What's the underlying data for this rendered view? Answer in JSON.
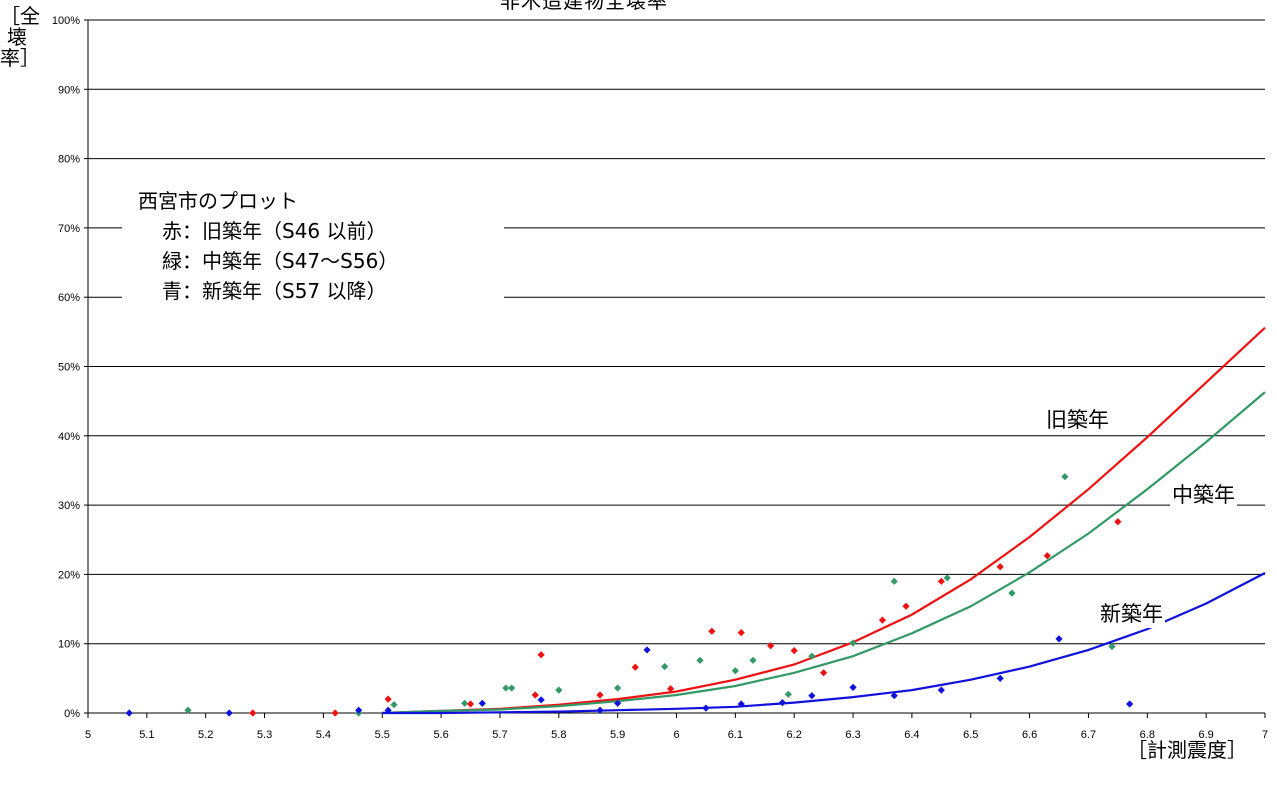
{
  "chart_data": {
    "type": "scatter",
    "title": "非木造建物全壊率",
    "ylabel": "［全壊率］",
    "xlabel": "［計測震度］",
    "xlim": [
      5,
      7
    ],
    "ylim": [
      0,
      100
    ],
    "x_ticks": [
      "5",
      "5.1",
      "5.2",
      "5.3",
      "5.4",
      "5.5",
      "5.6",
      "5.7",
      "5.8",
      "5.9",
      "6",
      "6.1",
      "6.2",
      "6.3",
      "6.4",
      "6.5",
      "6.6",
      "6.7",
      "6.8",
      "6.9",
      "7"
    ],
    "y_ticks": [
      "0%",
      "10%",
      "20%",
      "30%",
      "40%",
      "50%",
      "60%",
      "70%",
      "80%",
      "90%",
      "100%"
    ],
    "grid": "horizontal",
    "legend": {
      "title": "西宮市のプロット",
      "items": [
        "赤：旧築年（S46 以前）",
        "緑：中築年（S47～S56）",
        "青：新築年（S57 以降）"
      ]
    },
    "curve_labels": {
      "old": "旧築年",
      "mid": "中築年",
      "new": "新築年"
    },
    "colors": {
      "old": "#ee1111",
      "mid": "#339966",
      "new": "#1111dd"
    },
    "curves": [
      {
        "key": "old",
        "x": [
          5.5,
          5.6,
          5.7,
          5.8,
          5.9,
          6.0,
          6.1,
          6.2,
          6.3,
          6.4,
          6.5,
          6.6,
          6.7,
          6.8,
          6.9,
          7.0
        ],
        "y": [
          0,
          0.3,
          0.6,
          1.2,
          2.0,
          3.1,
          4.8,
          7.0,
          10.2,
          14.2,
          19.3,
          25.4,
          32.3,
          39.8,
          47.7,
          55.6
        ]
      },
      {
        "key": "mid",
        "x": [
          5.5,
          5.6,
          5.7,
          5.8,
          5.9,
          6.0,
          6.1,
          6.2,
          6.3,
          6.4,
          6.5,
          6.6,
          6.7,
          6.8,
          6.9,
          7.0
        ],
        "y": [
          0,
          0.3,
          0.5,
          1.0,
          1.7,
          2.6,
          3.9,
          5.8,
          8.2,
          11.5,
          15.4,
          20.3,
          25.9,
          32.3,
          39.1,
          46.3
        ]
      },
      {
        "key": "new",
        "x": [
          5.5,
          5.6,
          5.7,
          5.8,
          5.9,
          6.0,
          6.1,
          6.2,
          6.3,
          6.4,
          6.5,
          6.6,
          6.7,
          6.8,
          6.9,
          7.0
        ],
        "y": [
          0,
          0,
          0.1,
          0.2,
          0.4,
          0.6,
          0.9,
          1.5,
          2.3,
          3.3,
          4.8,
          6.7,
          9.1,
          12.1,
          15.8,
          20.2
        ]
      }
    ],
    "series": [
      {
        "key": "old",
        "points": [
          [
            5.28,
            0
          ],
          [
            5.42,
            0
          ],
          [
            5.51,
            2.0
          ],
          [
            5.65,
            1.3
          ],
          [
            5.76,
            2.6
          ],
          [
            5.77,
            8.4
          ],
          [
            5.87,
            2.6
          ],
          [
            5.93,
            6.6
          ],
          [
            5.99,
            3.5
          ],
          [
            6.06,
            11.8
          ],
          [
            6.11,
            11.6
          ],
          [
            6.16,
            9.7
          ],
          [
            6.2,
            9.0
          ],
          [
            6.25,
            5.8
          ],
          [
            6.35,
            13.4
          ],
          [
            6.39,
            15.4
          ],
          [
            6.45,
            19.0
          ],
          [
            6.55,
            21.1
          ],
          [
            6.63,
            22.7
          ],
          [
            6.75,
            27.6
          ]
        ]
      },
      {
        "key": "mid",
        "points": [
          [
            5.17,
            0.4
          ],
          [
            5.46,
            0
          ],
          [
            5.52,
            1.2
          ],
          [
            5.64,
            1.4
          ],
          [
            5.71,
            3.6
          ],
          [
            5.72,
            3.6
          ],
          [
            5.8,
            3.3
          ],
          [
            5.9,
            3.6
          ],
          [
            5.98,
            6.7
          ],
          [
            6.04,
            7.6
          ],
          [
            6.1,
            6.1
          ],
          [
            6.13,
            7.6
          ],
          [
            6.19,
            2.7
          ],
          [
            6.23,
            8.2
          ],
          [
            6.3,
            10.1
          ],
          [
            6.37,
            19.0
          ],
          [
            6.46,
            19.5
          ],
          [
            6.57,
            17.3
          ],
          [
            6.66,
            34.1
          ],
          [
            6.74,
            9.6
          ]
        ]
      },
      {
        "key": "new",
        "points": [
          [
            5.07,
            0
          ],
          [
            5.24,
            0
          ],
          [
            5.46,
            0.4
          ],
          [
            5.51,
            0.4
          ],
          [
            5.67,
            1.4
          ],
          [
            5.77,
            1.9
          ],
          [
            5.87,
            0.4
          ],
          [
            5.9,
            1.4
          ],
          [
            5.95,
            9.1
          ],
          [
            6.05,
            0.7
          ],
          [
            6.11,
            1.3
          ],
          [
            6.18,
            1.5
          ],
          [
            6.23,
            2.5
          ],
          [
            6.3,
            3.7
          ],
          [
            6.37,
            2.5
          ],
          [
            6.45,
            3.3
          ],
          [
            6.55,
            5.0
          ],
          [
            6.65,
            10.7
          ],
          [
            6.77,
            1.3
          ]
        ]
      }
    ]
  }
}
